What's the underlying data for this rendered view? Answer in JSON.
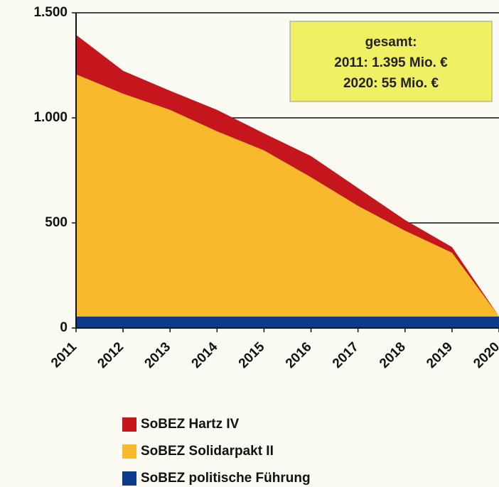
{
  "chart_data": {
    "type": "stacked_area",
    "categories": [
      "2011",
      "2012",
      "2013",
      "2014",
      "2015",
      "2016",
      "2017",
      "2018",
      "2019",
      "2020"
    ],
    "series": [
      {
        "name": "SoBEZ Hartz IV",
        "color": "#c4161c",
        "values": [
          188,
          109,
          91,
          102,
          81,
          101,
          85,
          51,
          27,
          0
        ]
      },
      {
        "name": "SoBEZ Solidarpakt II",
        "color": "#f8b92c",
        "values": [
          1152,
          1060,
          983,
          881,
          790,
          662,
          526,
          408,
          303,
          0
        ]
      },
      {
        "name": "SoBEZ politische Führung",
        "color": "#0d3b8c",
        "values": [
          55,
          55,
          55,
          55,
          55,
          55,
          55,
          55,
          55,
          55
        ]
      }
    ],
    "ylim": [
      0,
      1500
    ],
    "yticks": [
      0,
      500,
      {
        "value": 1000,
        "label": "1.000"
      },
      {
        "value": 1500,
        "label": "1.500"
      }
    ],
    "grid": true,
    "annotation": [
      "gesamt:",
      "2011: 1.395 Mio. €",
      "2020: 55 Mio. €"
    ]
  }
}
